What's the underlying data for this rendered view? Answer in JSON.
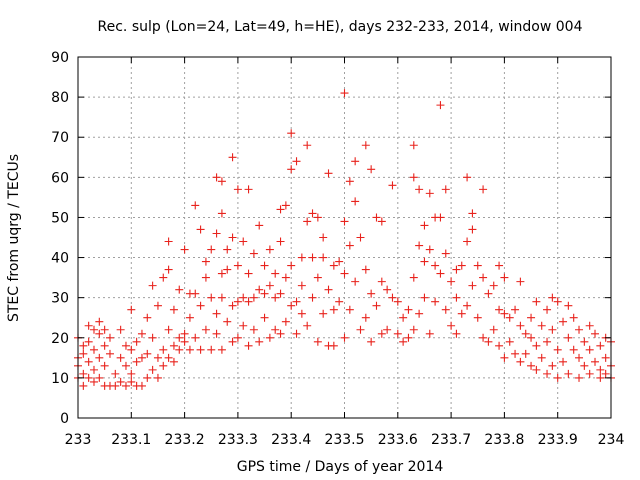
{
  "chart_data": {
    "type": "scatter",
    "title": "Rec. sulp (Lon=24, Lat=49, h=HE), days 232-233, 2014, window 004",
    "xlabel": "GPS time / Days of year 2014",
    "ylabel": "STEC from uqrg / TECUs",
    "xlim": [
      233,
      234
    ],
    "ylim": [
      0,
      90
    ],
    "xticks": [
      "233",
      "233.1",
      "233.2",
      "233.3",
      "233.4",
      "233.5",
      "233.6",
      "233.7",
      "233.8",
      "233.9",
      "234"
    ],
    "yticks": [
      "0",
      "10",
      "20",
      "30",
      "40",
      "50",
      "60",
      "70",
      "80",
      "90"
    ],
    "grid": true,
    "marker": "+",
    "color": "#e8231d",
    "series": [
      {
        "name": "",
        "points": [
          [
            233.0,
            10
          ],
          [
            233.0,
            20
          ],
          [
            233.0,
            15
          ],
          [
            233.0,
            13
          ],
          [
            233.01,
            8
          ],
          [
            233.01,
            11
          ],
          [
            233.01,
            16
          ],
          [
            233.01,
            18
          ],
          [
            233.02,
            23
          ],
          [
            233.02,
            19
          ],
          [
            233.02,
            14
          ],
          [
            233.02,
            10
          ],
          [
            233.03,
            22
          ],
          [
            233.03,
            17
          ],
          [
            233.03,
            12
          ],
          [
            233.03,
            9
          ],
          [
            233.04,
            24
          ],
          [
            233.04,
            21
          ],
          [
            233.04,
            15
          ],
          [
            233.04,
            10
          ],
          [
            233.05,
            22
          ],
          [
            233.05,
            18
          ],
          [
            233.05,
            13
          ],
          [
            233.05,
            8
          ],
          [
            233.06,
            20
          ],
          [
            233.06,
            16
          ],
          [
            233.06,
            8
          ],
          [
            233.07,
            11
          ],
          [
            233.07,
            8
          ],
          [
            233.08,
            22
          ],
          [
            233.08,
            15
          ],
          [
            233.08,
            9
          ],
          [
            233.09,
            8
          ],
          [
            233.09,
            13
          ],
          [
            233.09,
            18
          ],
          [
            233.1,
            27
          ],
          [
            233.1,
            11
          ],
          [
            233.1,
            17
          ],
          [
            233.1,
            9
          ],
          [
            233.11,
            8
          ],
          [
            233.11,
            14
          ],
          [
            233.11,
            19
          ],
          [
            233.12,
            8
          ],
          [
            233.12,
            21
          ],
          [
            233.12,
            15
          ],
          [
            233.13,
            10
          ],
          [
            233.13,
            16
          ],
          [
            233.13,
            25
          ],
          [
            233.14,
            12
          ],
          [
            233.14,
            33
          ],
          [
            233.14,
            20
          ],
          [
            233.15,
            15
          ],
          [
            233.15,
            28
          ],
          [
            233.15,
            10
          ],
          [
            233.16,
            35
          ],
          [
            233.16,
            17
          ],
          [
            233.16,
            13
          ],
          [
            233.17,
            44
          ],
          [
            233.17,
            37
          ],
          [
            233.17,
            22
          ],
          [
            233.17,
            15
          ],
          [
            233.18,
            18
          ],
          [
            233.18,
            27
          ],
          [
            233.18,
            14
          ],
          [
            233.19,
            32
          ],
          [
            233.19,
            20
          ],
          [
            233.19,
            17
          ],
          [
            233.2,
            42
          ],
          [
            233.2,
            21
          ],
          [
            233.2,
            19
          ],
          [
            233.21,
            31
          ],
          [
            233.21,
            25
          ],
          [
            233.21,
            17
          ],
          [
            233.22,
            53
          ],
          [
            233.22,
            31
          ],
          [
            233.22,
            20
          ],
          [
            233.23,
            47
          ],
          [
            233.23,
            28
          ],
          [
            233.23,
            17
          ],
          [
            233.24,
            39
          ],
          [
            233.24,
            35
          ],
          [
            233.24,
            22
          ],
          [
            233.25,
            42
          ],
          [
            233.25,
            30
          ],
          [
            233.25,
            17
          ],
          [
            233.26,
            60
          ],
          [
            233.26,
            46
          ],
          [
            233.26,
            26
          ],
          [
            233.26,
            21
          ],
          [
            233.27,
            59
          ],
          [
            233.27,
            51
          ],
          [
            233.27,
            36
          ],
          [
            233.27,
            30
          ],
          [
            233.27,
            17
          ],
          [
            233.28,
            42
          ],
          [
            233.28,
            37
          ],
          [
            233.28,
            24
          ],
          [
            233.29,
            65
          ],
          [
            233.29,
            45
          ],
          [
            233.29,
            28
          ],
          [
            233.29,
            19
          ],
          [
            233.3,
            57
          ],
          [
            233.3,
            38
          ],
          [
            233.3,
            29
          ],
          [
            233.3,
            20
          ],
          [
            233.31,
            44
          ],
          [
            233.31,
            30
          ],
          [
            233.31,
            23
          ],
          [
            233.32,
            57
          ],
          [
            233.32,
            36
          ],
          [
            233.32,
            29
          ],
          [
            233.32,
            18
          ],
          [
            233.33,
            41
          ],
          [
            233.33,
            30
          ],
          [
            233.33,
            22
          ],
          [
            233.34,
            48
          ],
          [
            233.34,
            32
          ],
          [
            233.34,
            19
          ],
          [
            233.35,
            38
          ],
          [
            233.35,
            31
          ],
          [
            233.35,
            25
          ],
          [
            233.36,
            42
          ],
          [
            233.36,
            33
          ],
          [
            233.36,
            20
          ],
          [
            233.37,
            36
          ],
          [
            233.37,
            30
          ],
          [
            233.37,
            22
          ],
          [
            233.38,
            52
          ],
          [
            233.38,
            44
          ],
          [
            233.38,
            31
          ],
          [
            233.38,
            21
          ],
          [
            233.39,
            53
          ],
          [
            233.39,
            35
          ],
          [
            233.39,
            24
          ],
          [
            233.4,
            71
          ],
          [
            233.4,
            62
          ],
          [
            233.4,
            38
          ],
          [
            233.4,
            28
          ],
          [
            233.41,
            64
          ],
          [
            233.41,
            29
          ],
          [
            233.41,
            21
          ],
          [
            233.42,
            40
          ],
          [
            233.42,
            33
          ],
          [
            233.42,
            26
          ],
          [
            233.43,
            68
          ],
          [
            233.43,
            49
          ],
          [
            233.43,
            23
          ],
          [
            233.44,
            51
          ],
          [
            233.44,
            40
          ],
          [
            233.44,
            30
          ],
          [
            233.45,
            50
          ],
          [
            233.45,
            35
          ],
          [
            233.45,
            19
          ],
          [
            233.46,
            45
          ],
          [
            233.46,
            40
          ],
          [
            233.46,
            26
          ],
          [
            233.47,
            61
          ],
          [
            233.47,
            32
          ],
          [
            233.47,
            18
          ],
          [
            233.48,
            38
          ],
          [
            233.48,
            27
          ],
          [
            233.48,
            18
          ],
          [
            233.49,
            39
          ],
          [
            233.49,
            29
          ],
          [
            233.5,
            81
          ],
          [
            233.5,
            49
          ],
          [
            233.5,
            36
          ],
          [
            233.5,
            20
          ],
          [
            233.51,
            59
          ],
          [
            233.51,
            43
          ],
          [
            233.51,
            27
          ],
          [
            233.52,
            64
          ],
          [
            233.52,
            54
          ],
          [
            233.52,
            34
          ],
          [
            233.53,
            45
          ],
          [
            233.53,
            22
          ],
          [
            233.54,
            68
          ],
          [
            233.54,
            37
          ],
          [
            233.54,
            25
          ],
          [
            233.55,
            62
          ],
          [
            233.55,
            31
          ],
          [
            233.55,
            19
          ],
          [
            233.56,
            50
          ],
          [
            233.56,
            28
          ],
          [
            233.57,
            49
          ],
          [
            233.57,
            34
          ],
          [
            233.57,
            21
          ],
          [
            233.58,
            32
          ],
          [
            233.58,
            22
          ],
          [
            233.59,
            58
          ],
          [
            233.59,
            30
          ],
          [
            233.6,
            29
          ],
          [
            233.6,
            21
          ],
          [
            233.61,
            25
          ],
          [
            233.61,
            19
          ],
          [
            233.62,
            27
          ],
          [
            233.62,
            20
          ],
          [
            233.63,
            68
          ],
          [
            233.63,
            60
          ],
          [
            233.63,
            35
          ],
          [
            233.63,
            22
          ],
          [
            233.64,
            57
          ],
          [
            233.64,
            43
          ],
          [
            233.64,
            26
          ],
          [
            233.65,
            48
          ],
          [
            233.65,
            39
          ],
          [
            233.65,
            30
          ],
          [
            233.66,
            56
          ],
          [
            233.66,
            42
          ],
          [
            233.66,
            21
          ],
          [
            233.67,
            50
          ],
          [
            233.67,
            38
          ],
          [
            233.67,
            29
          ],
          [
            233.68,
            78
          ],
          [
            233.68,
            50
          ],
          [
            233.68,
            36
          ],
          [
            233.69,
            57
          ],
          [
            233.69,
            41
          ],
          [
            233.69,
            27
          ],
          [
            233.7,
            34
          ],
          [
            233.7,
            23
          ],
          [
            233.71,
            37
          ],
          [
            233.71,
            30
          ],
          [
            233.71,
            21
          ],
          [
            233.72,
            38
          ],
          [
            233.72,
            26
          ],
          [
            233.73,
            60
          ],
          [
            233.73,
            44
          ],
          [
            233.73,
            28
          ],
          [
            233.74,
            51
          ],
          [
            233.74,
            47
          ],
          [
            233.74,
            33
          ],
          [
            233.75,
            38
          ],
          [
            233.75,
            25
          ],
          [
            233.76,
            57
          ],
          [
            233.76,
            35
          ],
          [
            233.76,
            20
          ],
          [
            233.77,
            31
          ],
          [
            233.77,
            19
          ],
          [
            233.78,
            33
          ],
          [
            233.78,
            22
          ],
          [
            233.79,
            38
          ],
          [
            233.79,
            27
          ],
          [
            233.79,
            18
          ],
          [
            233.8,
            35
          ],
          [
            233.8,
            26
          ],
          [
            233.8,
            15
          ],
          [
            233.81,
            25
          ],
          [
            233.81,
            19
          ],
          [
            233.82,
            27
          ],
          [
            233.82,
            16
          ],
          [
            233.83,
            34
          ],
          [
            233.83,
            23
          ],
          [
            233.83,
            14
          ],
          [
            233.84,
            21
          ],
          [
            233.84,
            16
          ],
          [
            233.85,
            25
          ],
          [
            233.85,
            20
          ],
          [
            233.85,
            13
          ],
          [
            233.86,
            29
          ],
          [
            233.86,
            18
          ],
          [
            233.86,
            12
          ],
          [
            233.87,
            23
          ],
          [
            233.87,
            15
          ],
          [
            233.88,
            27
          ],
          [
            233.88,
            19
          ],
          [
            233.88,
            11
          ],
          [
            233.89,
            30
          ],
          [
            233.89,
            22
          ],
          [
            233.89,
            13
          ],
          [
            233.9,
            29
          ],
          [
            233.9,
            17
          ],
          [
            233.9,
            10
          ],
          [
            233.91,
            24
          ],
          [
            233.91,
            14
          ],
          [
            233.92,
            28
          ],
          [
            233.92,
            20
          ],
          [
            233.92,
            11
          ],
          [
            233.93,
            25
          ],
          [
            233.93,
            17
          ],
          [
            233.94,
            22
          ],
          [
            233.94,
            15
          ],
          [
            233.94,
            10
          ],
          [
            233.95,
            19
          ],
          [
            233.95,
            13
          ],
          [
            233.96,
            23
          ],
          [
            233.96,
            17
          ],
          [
            233.96,
            11
          ],
          [
            233.97,
            21
          ],
          [
            233.97,
            14
          ],
          [
            233.98,
            18
          ],
          [
            233.98,
            12
          ],
          [
            233.98,
            10
          ],
          [
            233.99,
            20
          ],
          [
            233.99,
            15
          ],
          [
            233.99,
            11
          ],
          [
            234.0,
            19
          ],
          [
            234.0,
            13
          ],
          [
            234.0,
            10
          ]
        ]
      }
    ]
  }
}
